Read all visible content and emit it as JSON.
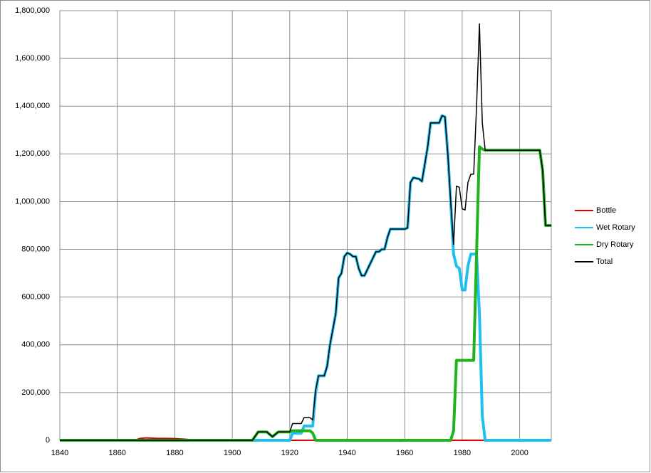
{
  "chart_data": {
    "type": "line",
    "xlim": [
      1840,
      2011
    ],
    "xticks": [
      1840,
      1860,
      1880,
      1900,
      1920,
      1940,
      1960,
      1980,
      2000
    ],
    "ylim": [
      0,
      1800000
    ],
    "yticks": [
      0,
      {
        "value": 200000,
        "label": "200,000"
      },
      {
        "value": 400000,
        "label": "400,000"
      },
      {
        "value": 600000,
        "label": "600,000"
      },
      {
        "value": 800000,
        "label": "800,000"
      },
      {
        "value": 1000000,
        "label": "1,000,000"
      },
      {
        "value": 1200000,
        "label": "1,200,000"
      },
      {
        "value": 1400000,
        "label": "1,400,000"
      },
      {
        "value": 1600000,
        "label": "1,600,000"
      },
      {
        "value": 1800000,
        "label": "1,800,000"
      }
    ],
    "grid": true,
    "legend": "right",
    "series": [
      {
        "name": "Bottle",
        "color": "#e00000",
        "width": 2,
        "x": [
          1840,
          1866,
          1868,
          1870,
          1874,
          1876,
          1880,
          1884,
          1888,
          2011
        ],
        "values": [
          0,
          0,
          8000,
          10000,
          8000,
          8000,
          7000,
          4000,
          0,
          0
        ]
      },
      {
        "name": "Wet Rotary",
        "color": "#1ec0f0",
        "width": 4,
        "x": [
          1840,
          1920,
          1921,
          1924,
          1925,
          1928,
          1929,
          1930,
          1932,
          1933,
          1934,
          1936,
          1937,
          1938,
          1939,
          1940,
          1941,
          1942,
          1943,
          1944,
          1945,
          1946,
          1948,
          1950,
          1951,
          1952,
          1953,
          1954,
          1955,
          1960,
          1961,
          1962,
          1963,
          1965,
          1966,
          1968,
          1969,
          1972,
          1973,
          1974,
          1975,
          1976,
          1977,
          1978,
          1979,
          1980,
          1981,
          1982,
          1983,
          1985,
          1986,
          1987,
          1988,
          2011
        ],
        "values": [
          0,
          0,
          30000,
          30000,
          60000,
          60000,
          200000,
          270000,
          270000,
          310000,
          400000,
          530000,
          680000,
          700000,
          770000,
          785000,
          780000,
          770000,
          770000,
          720000,
          690000,
          690000,
          740000,
          790000,
          790000,
          800000,
          800000,
          850000,
          885000,
          885000,
          890000,
          1080000,
          1100000,
          1095000,
          1085000,
          1230000,
          1330000,
          1330000,
          1360000,
          1355000,
          1200000,
          1000000,
          780000,
          730000,
          720000,
          630000,
          630000,
          730000,
          780000,
          780000,
          530000,
          100000,
          0,
          0
        ]
      },
      {
        "name": "Dry Rotary",
        "color": "#1eb41e",
        "width": 4,
        "x": [
          1840,
          1907,
          1909,
          1912,
          1914,
          1916,
          1920,
          1921,
          1927,
          1928,
          1929,
          1976,
          1977,
          1978,
          1984,
          1986,
          1987,
          1988,
          2007,
          2008,
          2009,
          2011
        ],
        "values": [
          0,
          0,
          35000,
          35000,
          15000,
          35000,
          35000,
          40000,
          40000,
          30000,
          0,
          0,
          40000,
          335000,
          335000,
          1230000,
          1220000,
          1215000,
          1215000,
          1130000,
          900000,
          900000
        ]
      },
      {
        "name": "Total",
        "color": "#000000",
        "width": 1.5,
        "x": [
          1840,
          1907,
          1909,
          1912,
          1914,
          1916,
          1920,
          1921,
          1924,
          1925,
          1927,
          1928,
          1929,
          1930,
          1932,
          1933,
          1934,
          1936,
          1937,
          1938,
          1939,
          1940,
          1941,
          1942,
          1943,
          1944,
          1945,
          1946,
          1948,
          1950,
          1951,
          1952,
          1953,
          1954,
          1955,
          1960,
          1961,
          1962,
          1963,
          1965,
          1966,
          1968,
          1969,
          1972,
          1973,
          1974,
          1975,
          1976,
          1977,
          1978,
          1979,
          1980,
          1981,
          1982,
          1983,
          1984,
          1985,
          1986,
          1987,
          1988,
          2007,
          2008,
          2009,
          2011
        ],
        "values": [
          0,
          0,
          35000,
          35000,
          15000,
          35000,
          35000,
          70000,
          70000,
          95000,
          95000,
          85000,
          210000,
          270000,
          270000,
          310000,
          400000,
          530000,
          680000,
          700000,
          770000,
          785000,
          780000,
          770000,
          770000,
          720000,
          690000,
          690000,
          740000,
          790000,
          790000,
          800000,
          800000,
          850000,
          885000,
          885000,
          890000,
          1080000,
          1100000,
          1095000,
          1085000,
          1230000,
          1330000,
          1330000,
          1360000,
          1355000,
          1200000,
          1000000,
          820000,
          1065000,
          1060000,
          970000,
          965000,
          1080000,
          1115000,
          1115000,
          1400000,
          1745000,
          1330000,
          1215000,
          1215000,
          1130000,
          900000,
          900000
        ]
      }
    ]
  }
}
